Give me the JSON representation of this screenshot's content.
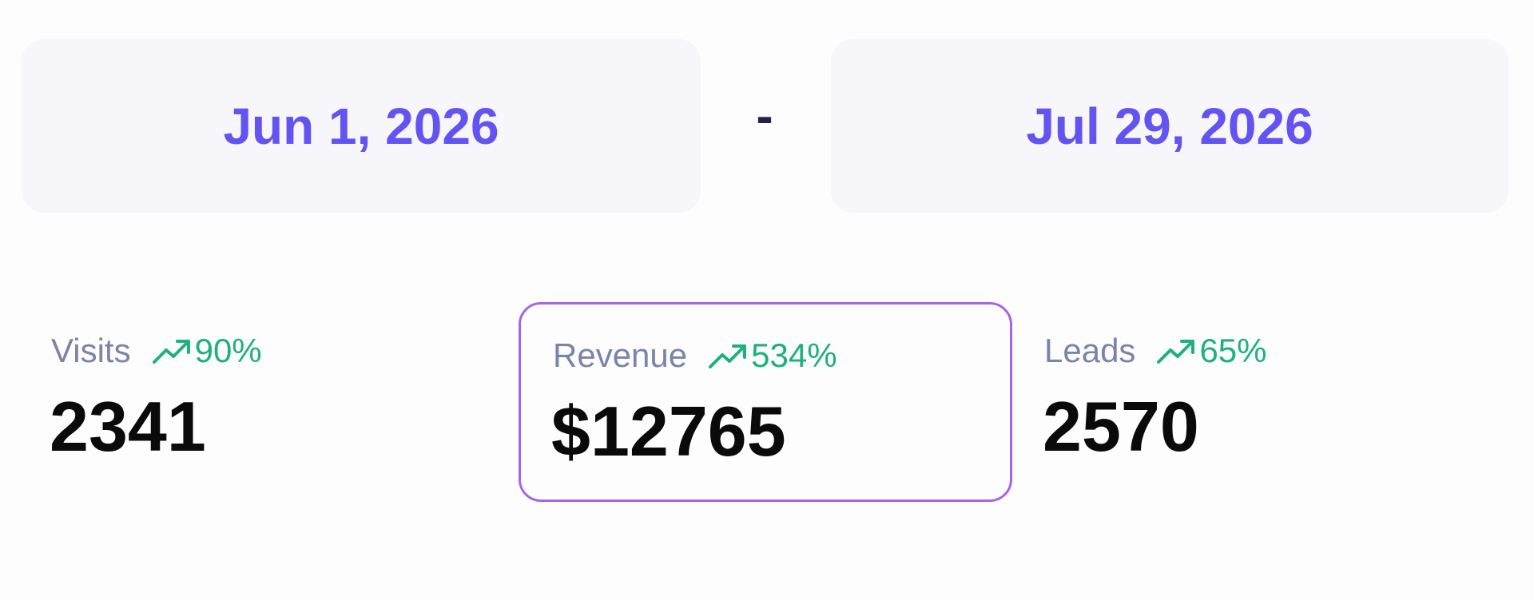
{
  "date_range": {
    "start": "Jun 1, 2026",
    "separator": "-",
    "end": "Jul 29, 2026"
  },
  "metrics": [
    {
      "label": "Visits",
      "change": "90%",
      "value": "2341"
    },
    {
      "label": "Revenue",
      "change": "534%",
      "value": "$12765"
    },
    {
      "label": "Leads",
      "change": "65%",
      "value": "2570"
    }
  ]
}
